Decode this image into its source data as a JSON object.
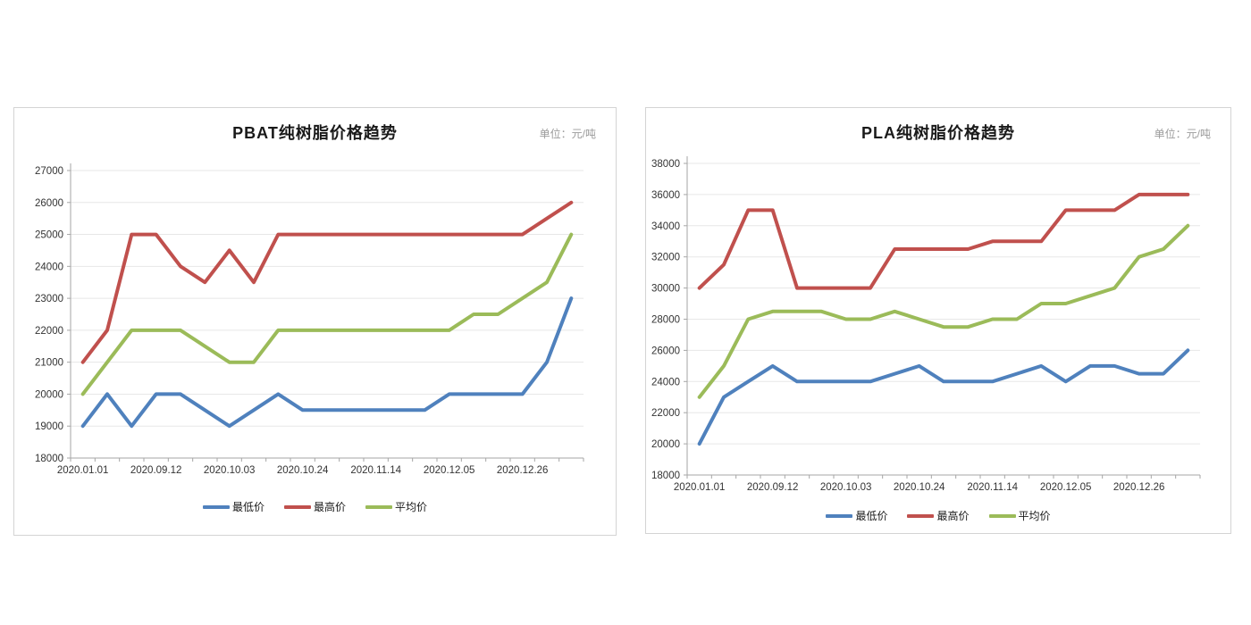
{
  "chart_data": [
    {
      "type": "line",
      "title": "PBAT纯树脂价格趋势",
      "unit": "单位：元/吨",
      "ylim": [
        18000,
        27000
      ],
      "y_step": 1000,
      "n_points": 21,
      "x_tick_labels": [
        "2020.01.01",
        "2020.09.12",
        "2020.10.03",
        "2020.10.24",
        "2020.11.14",
        "2020.12.05",
        "2020.12.26"
      ],
      "x_tick_indices": [
        0,
        3,
        6,
        9,
        12,
        15,
        18
      ],
      "grid": true,
      "legend_position": "bottom",
      "series": [
        {
          "name": "最低价",
          "color": "#4F81BD",
          "values": [
            19000,
            20000,
            19000,
            20000,
            20000,
            19500,
            19000,
            19500,
            20000,
            19500,
            19500,
            19500,
            19500,
            19500,
            19500,
            20000,
            20000,
            20000,
            20000,
            21000,
            23000
          ]
        },
        {
          "name": "最高价",
          "color": "#C0504D",
          "values": [
            21000,
            22000,
            25000,
            25000,
            24000,
            23500,
            24500,
            23500,
            25000,
            25000,
            25000,
            25000,
            25000,
            25000,
            25000,
            25000,
            25000,
            25000,
            25000,
            25500,
            26000
          ]
        },
        {
          "name": "平均价",
          "color": "#9BBB59",
          "values": [
            20000,
            21000,
            22000,
            22000,
            22000,
            21500,
            21000,
            21000,
            22000,
            22000,
            22000,
            22000,
            22000,
            22000,
            22000,
            22000,
            22500,
            22500,
            23000,
            23500,
            25000
          ]
        }
      ]
    },
    {
      "type": "line",
      "title": "PLA纯树脂价格趋势",
      "unit": "单位：元/吨",
      "ylim": [
        18000,
        38000
      ],
      "y_step": 2000,
      "n_points": 21,
      "x_tick_labels": [
        "2020.01.01",
        "2020.09.12",
        "2020.10.03",
        "2020.10.24",
        "2020.11.14",
        "2020.12.05",
        "2020.12.26"
      ],
      "x_tick_indices": [
        0,
        3,
        6,
        9,
        12,
        15,
        18
      ],
      "grid": true,
      "legend_position": "bottom",
      "series": [
        {
          "name": "最低价",
          "color": "#4F81BD",
          "values": [
            20000,
            23000,
            24000,
            25000,
            24000,
            24000,
            24000,
            24000,
            24500,
            25000,
            24000,
            24000,
            24000,
            24500,
            25000,
            24000,
            25000,
            25000,
            24500,
            24500,
            26000
          ]
        },
        {
          "name": "最高价",
          "color": "#C0504D",
          "values": [
            30000,
            31500,
            35000,
            35000,
            30000,
            30000,
            30000,
            30000,
            32500,
            32500,
            32500,
            32500,
            33000,
            33000,
            33000,
            35000,
            35000,
            35000,
            36000,
            36000,
            36000
          ]
        },
        {
          "name": "平均价",
          "color": "#9BBB59",
          "values": [
            23000,
            25000,
            28000,
            28500,
            28500,
            28500,
            28000,
            28000,
            28500,
            28000,
            27500,
            27500,
            28000,
            28000,
            29000,
            29000,
            29500,
            30000,
            32000,
            32500,
            34000
          ]
        }
      ]
    }
  ],
  "style": {
    "grid_color": "#e7e7e7",
    "axis_color": "#a6a6a6",
    "tick_label_color": "#333333"
  }
}
